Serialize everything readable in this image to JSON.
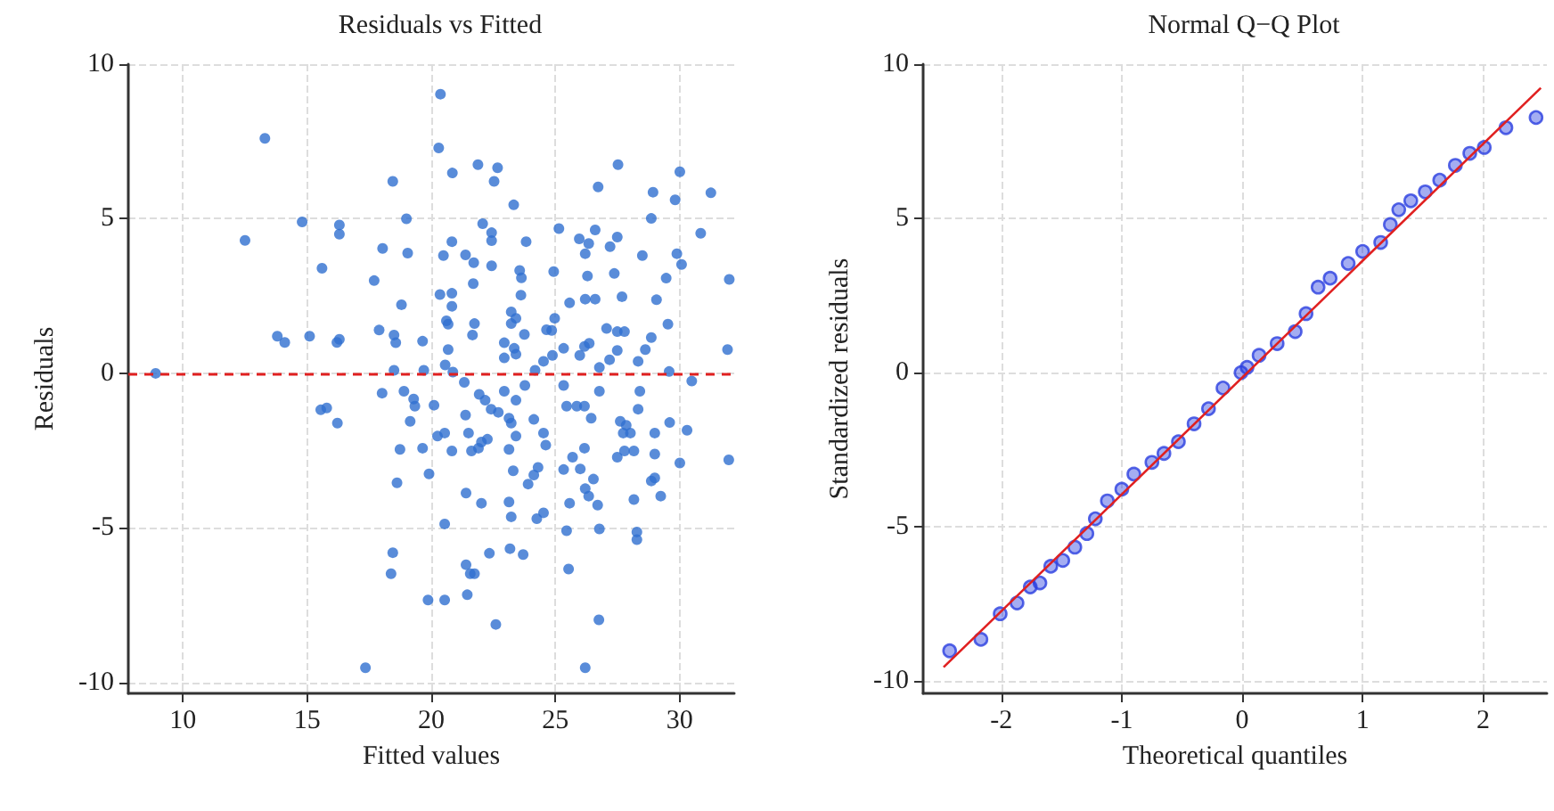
{
  "chart_data": [
    {
      "type": "scatter",
      "title": "Residuals vs Fitted",
      "xlabel": "Fitted values",
      "ylabel": "Residuals",
      "color": "#2f6fd0",
      "marker": "circle",
      "grid": true,
      "xlim": [
        7.8,
        32.2
      ],
      "ylim": [
        -10.35,
        10
      ],
      "xticks": [
        10,
        15,
        20,
        25,
        30
      ],
      "yticks": [
        -10,
        -5,
        0,
        5,
        10
      ],
      "ref_lines": [
        {
          "axis": "y",
          "value": 0,
          "color": "#e02020",
          "line_style": "dashed"
        }
      ],
      "x": [
        8.9,
        13.3,
        12.5,
        14.8,
        16.3,
        16.3,
        15.6,
        17.7,
        13.8,
        14.1,
        15.1,
        16.3,
        16.2,
        17.9,
        18.45,
        18.04,
        19.0,
        19.05,
        18.8,
        18.5,
        18.57,
        18.5,
        19.65,
        19.7,
        20.37,
        20.3,
        20.85,
        21.88,
        22.67,
        22.53,
        23.32,
        20.49,
        20.83,
        21.38,
        21.71,
        22.07,
        22.43,
        22.43,
        22.43,
        21.69,
        20.35,
        20.83,
        20.83,
        20.61,
        20.68,
        21.74,
        21.66,
        20.68,
        20.56,
        20.87,
        23.82,
        23.56,
        23.63,
        23.61,
        23.22,
        23.41,
        23.22,
        23.75,
        22.94,
        23.34,
        23.41,
        22.94,
        25.14,
        24.93,
        25.57,
        24.97,
        24.64,
        24.85,
        24.88,
        24.52,
        24.18,
        25.33,
        25.96,
        26.2,
        26.34,
        26.6,
        26.29,
        26.2,
        26.6,
        26.17,
        26.36,
        25.98,
        26.72,
        27.52,
        27.49,
        27.2,
        27.37,
        27.68,
        27.06,
        27.49,
        27.78,
        27.49,
        27.18,
        26.77,
        28.33,
        28.62,
        28.86,
        28.93,
        28.86,
        28.5,
        29.07,
        29.46,
        29.53,
        29.58,
        30.01,
        29.82,
        29.89,
        30.08,
        30.85,
        31.26,
        32.0,
        31.93,
        15.55,
        15.79,
        16.22,
        17.35,
        18.02,
        18.9,
        19.29,
        19.34,
        19.15,
        19.65,
        18.74,
        18.62,
        18.45,
        18.38,
        20.11,
        20.25,
        20.54,
        20.83,
        19.91,
        20.54,
        19.87,
        20.54,
        21.33,
        21.38,
        21.5,
        21.62,
        21.9,
        22.02,
        22.26,
        21.93,
        22.17,
        22.41,
        22.7,
        21.4,
        22.02,
        21.4,
        21.57,
        21.74,
        21.45,
        22.34,
        22.6,
        22.94,
        23.13,
        23.22,
        23.41,
        23.13,
        23.3,
        23.13,
        23.22,
        23.17,
        23.7,
        23.41,
        23.77,
        24.13,
        24.52,
        24.61,
        24.3,
        23.9,
        24.13,
        24.25,
        24.52,
        25.33,
        25.45,
        25.86,
        26.17,
        25.33,
        25.69,
        26.0,
        26.17,
        25.57,
        25.45,
        25.53,
        26.2,
        26.34,
        26.53,
        26.44,
        26.7,
        26.77,
        26.75,
        26.2,
        26.77,
        27.61,
        27.85,
        27.73,
        27.49,
        27.78,
        28.16,
        28.02,
        28.33,
        28.4,
        29.0,
        29.0,
        28.86,
        29.0,
        29.24,
        28.16,
        28.28,
        28.28,
        29.6,
        30.01,
        30.3,
        30.49,
        31.98
      ],
      "values": [
        0.0,
        7.6,
        4.3,
        4.9,
        4.8,
        4.5,
        3.4,
        3.0,
        1.2,
        1.0,
        1.2,
        1.1,
        1.0,
        1.4,
        6.21,
        4.04,
        5.0,
        3.89,
        2.22,
        1.24,
        0.99,
        0.1,
        1.04,
        0.1,
        9.03,
        7.29,
        6.48,
        6.75,
        6.65,
        6.21,
        5.45,
        3.81,
        4.26,
        3.83,
        3.58,
        4.84,
        4.55,
        4.29,
        3.48,
        2.9,
        2.55,
        2.59,
        2.17,
        1.7,
        1.59,
        1.61,
        1.24,
        0.77,
        0.27,
        0.04,
        4.26,
        3.33,
        3.09,
        2.53,
        1.99,
        1.78,
        1.61,
        1.26,
        0.99,
        0.81,
        0.62,
        0.5,
        4.68,
        3.29,
        2.28,
        1.78,
        1.41,
        1.39,
        0.58,
        0.39,
        0.1,
        0.81,
        4.35,
        3.87,
        4.2,
        4.64,
        3.15,
        2.4,
        2.4,
        0.87,
        0.97,
        0.58,
        6.03,
        6.75,
        4.41,
        4.1,
        3.23,
        2.48,
        1.45,
        1.35,
        1.35,
        0.74,
        0.44,
        0.19,
        0.39,
        0.77,
        1.16,
        5.86,
        5.01,
        3.81,
        2.38,
        3.08,
        1.59,
        0.06,
        6.52,
        5.61,
        3.87,
        3.52,
        4.53,
        5.84,
        3.04,
        0.77,
        -1.18,
        -1.12,
        -1.61,
        -9.52,
        -0.64,
        -0.58,
        -0.83,
        -1.06,
        -1.55,
        -2.42,
        -2.46,
        -3.54,
        -5.8,
        -6.48,
        -1.03,
        -2.03,
        -1.93,
        -2.51,
        -3.25,
        -4.87,
        -7.33,
        -7.33,
        -0.29,
        -1.35,
        -1.93,
        -2.51,
        -2.42,
        -2.22,
        -2.13,
        -0.68,
        -0.87,
        -1.16,
        -1.26,
        -3.87,
        -4.2,
        -6.19,
        -6.48,
        -6.48,
        -7.16,
        -5.82,
        -8.12,
        -0.58,
        -1.45,
        -1.61,
        -2.03,
        -2.46,
        -3.15,
        -4.16,
        -4.64,
        -5.67,
        -5.86,
        -0.87,
        -0.39,
        -1.49,
        -1.93,
        -2.32,
        -3.04,
        -3.58,
        -3.29,
        -4.7,
        -4.51,
        -0.39,
        -1.06,
        -1.06,
        -1.06,
        -3.11,
        -2.71,
        -3.09,
        -2.42,
        -4.2,
        -5.09,
        -6.33,
        -3.73,
        -3.97,
        -3.42,
        -1.45,
        -4.26,
        -5.03,
        -7.97,
        -9.52,
        -0.58,
        -1.55,
        -1.68,
        -1.93,
        -2.71,
        -2.51,
        -2.51,
        -1.93,
        -1.16,
        -0.58,
        -1.93,
        -2.61,
        -3.48,
        -3.38,
        -3.97,
        -4.08,
        -5.13,
        -5.38,
        -1.59,
        -2.9,
        -1.84,
        -0.25,
        -2.8
      ]
    },
    {
      "type": "scatter",
      "title": "Normal Q−Q Plot",
      "xlabel": "Theoretical quantiles",
      "ylabel": "Standardized residuals",
      "grid": true,
      "xlim": [
        -2.65,
        2.53
      ],
      "ylim": [
        -10.4,
        10
      ],
      "xticks": [
        -2,
        -1,
        0,
        1,
        2
      ],
      "yticks": [
        -10,
        -5,
        0,
        5,
        10
      ],
      "series": [
        {
          "marker": "circle",
          "color": "#2a3fe0",
          "x": [
            -2.43,
            -2.17,
            -2.01,
            -1.87,
            -1.76,
            -1.68,
            -1.59,
            -1.49,
            -1.39,
            -1.29,
            -1.22,
            -1.12,
            -1.0,
            -0.9,
            -0.75,
            -0.65,
            -0.53,
            -0.4,
            -0.28,
            -0.16,
            -0.01,
            0.04,
            0.14,
            0.29,
            0.44,
            0.53,
            0.63,
            0.73,
            0.88,
            1.0,
            1.15,
            1.23,
            1.3,
            1.4,
            1.52,
            1.64,
            1.77,
            1.89,
            2.01,
            2.19,
            2.44
          ],
          "values": [
            -9.02,
            -8.65,
            -7.82,
            -7.47,
            -6.95,
            -6.82,
            -6.28,
            -6.09,
            -5.66,
            -5.22,
            -4.74,
            -4.16,
            -3.78,
            -3.29,
            -2.91,
            -2.62,
            -2.24,
            -1.66,
            -1.17,
            -0.5,
            0.0,
            0.17,
            0.56,
            0.94,
            1.33,
            1.91,
            2.77,
            3.06,
            3.54,
            3.93,
            4.22,
            4.8,
            5.28,
            5.57,
            5.86,
            6.24,
            6.72,
            7.11,
            7.3,
            7.94,
            8.27
          ]
        },
        {
          "type": "line",
          "color": "#e02020",
          "x": [
            -2.48,
            2.48
          ],
          "values": [
            -9.55,
            9.23
          ]
        }
      ]
    }
  ]
}
